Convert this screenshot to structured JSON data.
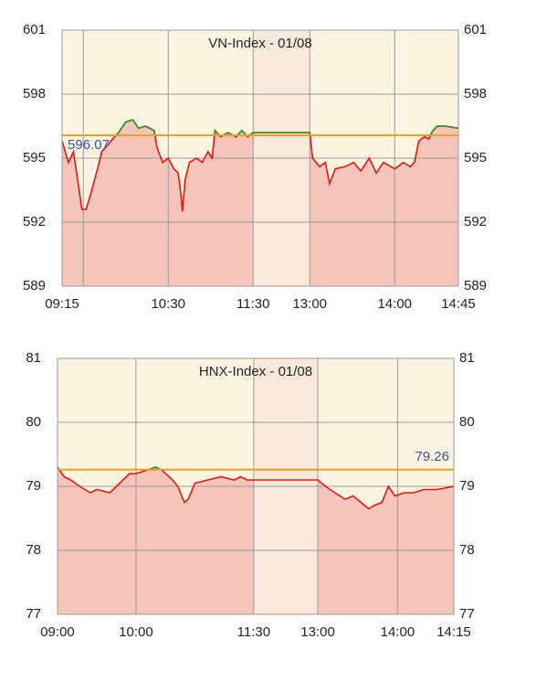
{
  "chart_data": [
    {
      "type": "line",
      "title": "VN-Index - 01/08",
      "x": [
        0,
        4.5,
        8,
        11,
        14,
        17,
        21,
        25,
        28,
        32,
        37,
        40,
        45,
        50,
        54,
        59,
        65,
        67,
        71,
        75,
        79,
        82,
        84,
        85,
        87,
        90,
        95,
        99,
        103,
        106,
        108,
        112,
        117,
        123,
        127,
        131,
        135,
        175,
        177,
        182,
        186,
        189,
        193,
        200,
        206,
        211,
        217,
        222,
        227,
        235,
        241,
        246,
        249,
        252,
        256,
        259,
        262,
        265,
        271,
        280
      ],
      "values": [
        595.8,
        594.8,
        595.3,
        594.0,
        592.6,
        592.6,
        593.5,
        594.5,
        595.3,
        595.6,
        596.0,
        596.2,
        596.7,
        596.8,
        596.4,
        596.5,
        596.3,
        595.5,
        594.8,
        595.0,
        594.5,
        594.3,
        593.3,
        592.5,
        594.0,
        594.8,
        595.0,
        594.8,
        595.3,
        595.0,
        596.3,
        596.0,
        596.2,
        596.0,
        596.3,
        596.0,
        596.2,
        596.2,
        595.0,
        594.6,
        594.8,
        593.8,
        594.5,
        594.6,
        594.8,
        594.4,
        595.0,
        594.3,
        594.8,
        594.5,
        594.8,
        594.6,
        594.8,
        595.8,
        596.0,
        595.9,
        596.3,
        596.5,
        596.5,
        596.4
      ],
      "reference": 596.07,
      "reference_label": "596.07",
      "reference_label_position": "left",
      "xlim": [
        0,
        280
      ],
      "xticks": [
        {
          "value": 0,
          "label": "09:15"
        },
        {
          "value": 15,
          "label": null
        },
        {
          "value": 75,
          "label": "10:30"
        },
        {
          "value": 135,
          "label": "11:30"
        },
        {
          "value": 175,
          "label": "13:00"
        },
        {
          "value": 235,
          "label": "14:00"
        },
        {
          "value": 280,
          "label": "14:45"
        }
      ],
      "ylim": [
        589,
        601
      ],
      "yticks": [
        589,
        592,
        595,
        598,
        601
      ],
      "shade": [
        135,
        175
      ],
      "grid": true
    },
    {
      "type": "line",
      "title": "HNX-Index - 01/08",
      "x": [
        0,
        5,
        10,
        17,
        25,
        30,
        40,
        45,
        55,
        60,
        68,
        75,
        80,
        88,
        92,
        97,
        100,
        105,
        115,
        125,
        135,
        140,
        145,
        150,
        199,
        205,
        212,
        220,
        226,
        238,
        242,
        248,
        253,
        258,
        265,
        272,
        280,
        290,
        303
      ],
      "values": [
        79.3,
        79.15,
        79.1,
        79.0,
        78.9,
        78.95,
        78.9,
        79.0,
        79.2,
        79.2,
        79.25,
        79.3,
        79.25,
        79.1,
        79.0,
        78.75,
        78.8,
        79.05,
        79.1,
        79.15,
        79.1,
        79.15,
        79.1,
        79.1,
        79.1,
        79.0,
        78.9,
        78.8,
        78.85,
        78.65,
        78.7,
        78.75,
        79.0,
        78.85,
        78.9,
        78.9,
        78.95,
        78.95,
        79.0
      ],
      "reference": 79.26,
      "reference_label": "79.26",
      "reference_label_position": "right",
      "xlim": [
        0,
        303
      ],
      "xticks": [
        {
          "value": 0,
          "label": "09:00"
        },
        {
          "value": 60,
          "label": "10:00"
        },
        {
          "value": 150,
          "label": "11:30"
        },
        {
          "value": 199,
          "label": "13:00"
        },
        {
          "value": 260,
          "label": "14:00"
        },
        {
          "value": 303,
          "label": "14:15"
        }
      ],
      "ylim": [
        77,
        81
      ],
      "yticks": [
        77,
        78,
        79,
        80,
        81
      ],
      "shade": [
        150,
        199
      ],
      "grid": true
    }
  ],
  "style": {
    "background": "#fdf5e1",
    "fill_color": "#f5c5bb",
    "shade_color": "#f9e9dc",
    "line_color_below": "#e8140c",
    "line_color_above": "#1f9a22",
    "reference_color": "#f0a020",
    "reference_label_color": "#3d4ea6",
    "grid_color": "#9a9a9a"
  }
}
